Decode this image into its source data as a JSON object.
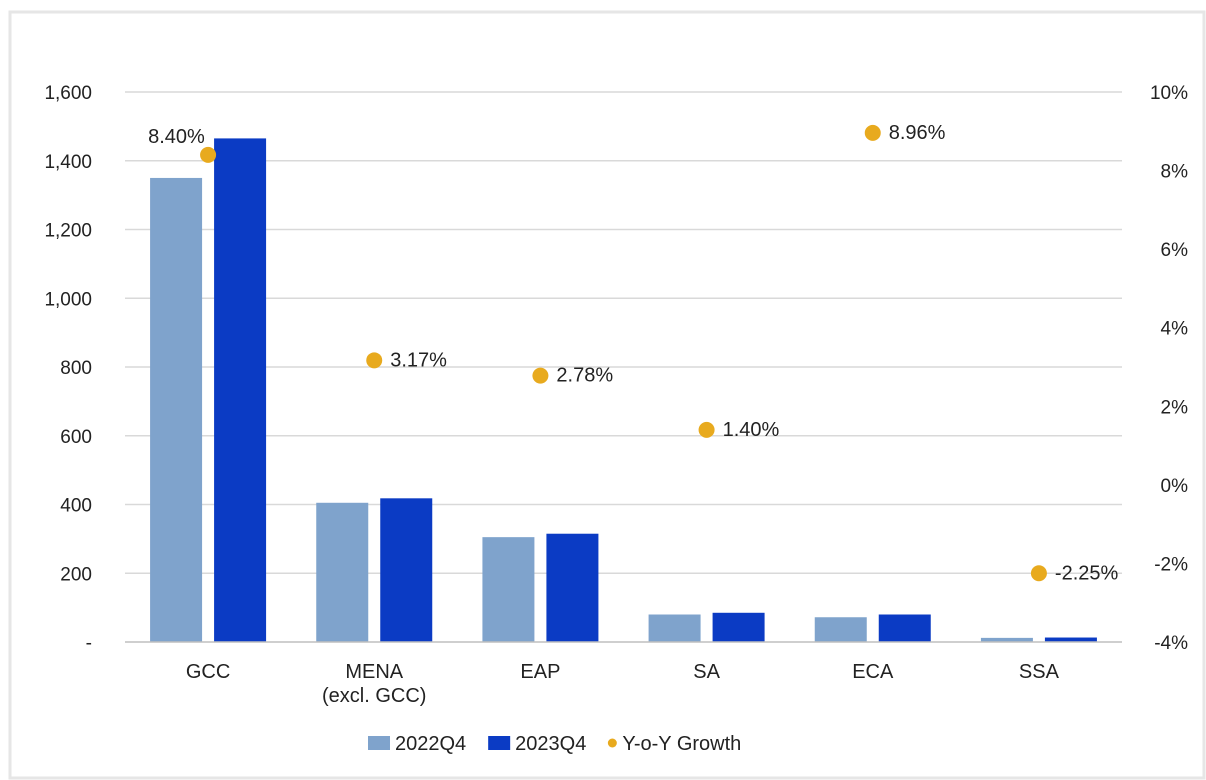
{
  "chart_data": {
    "type": "bar",
    "categories": [
      "GCC",
      "MENA\n(excl. GCC)",
      "EAP",
      "SA",
      "ECA",
      "SSA"
    ],
    "series": [
      {
        "name": "2022Q4",
        "axis": "left",
        "values": [
          1350,
          405,
          305,
          80,
          72,
          12
        ],
        "color": "#7fa3cc"
      },
      {
        "name": "2023Q4",
        "axis": "left",
        "values": [
          1465,
          418,
          315,
          85,
          80,
          13
        ],
        "color": "#0b3bc4"
      },
      {
        "name": "Y-o-Y Growth",
        "axis": "right",
        "type": "scatter",
        "values": [
          8.4,
          3.17,
          2.78,
          1.4,
          8.96,
          -2.25
        ],
        "labels": [
          "8.40%",
          "3.17%",
          "2.78%",
          "1.40%",
          "8.96%",
          "-2.25%"
        ],
        "color": "#e8aa1e"
      }
    ],
    "y_left": {
      "ylim": [
        0,
        1600
      ],
      "ticks": [
        0,
        200,
        400,
        600,
        800,
        1000,
        1200,
        1400,
        1600
      ],
      "tick_labels": [
        "-",
        "200",
        "400",
        "600",
        "800",
        "1,000",
        "1,200",
        "1,400",
        "1,600"
      ]
    },
    "y_right": {
      "ylim": [
        -4,
        10
      ],
      "ticks": [
        -4,
        -2,
        0,
        2,
        4,
        6,
        8,
        10
      ],
      "tick_labels": [
        "-4%",
        "-2%",
        "0%",
        "2%",
        "4%",
        "6%",
        "8%",
        "10%"
      ]
    },
    "grid": true,
    "legend": "bottom",
    "title": "",
    "xlabel": "",
    "ylabel": ""
  }
}
